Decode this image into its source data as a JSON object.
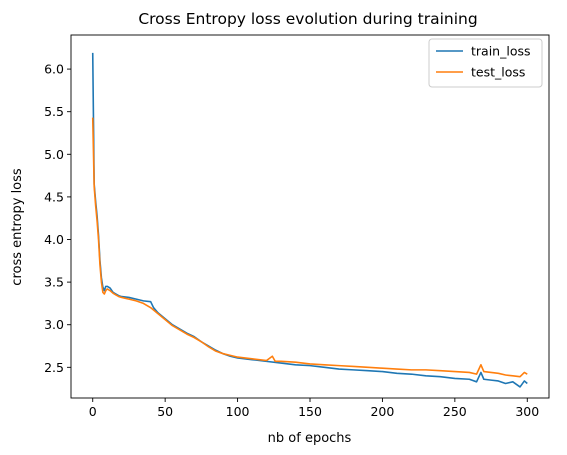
{
  "chart_data": {
    "type": "line",
    "title": "Cross Entropy loss evolution during training",
    "xlabel": "nb of epochs",
    "ylabel": "cross entropy loss",
    "xlim": [
      -15,
      315
    ],
    "ylim": [
      2.14,
      6.4
    ],
    "xticks": [
      0,
      50,
      100,
      150,
      200,
      250,
      300
    ],
    "yticks": [
      2.5,
      3.0,
      3.5,
      4.0,
      4.5,
      5.0,
      5.5,
      6.0
    ],
    "xtick_labels": [
      "0",
      "50",
      "100",
      "150",
      "200",
      "250",
      "300"
    ],
    "ytick_labels": [
      "2.5",
      "3.0",
      "3.5",
      "4.0",
      "4.5",
      "5.0",
      "5.5",
      "6.0"
    ],
    "grid": false,
    "legend_position": "top-right",
    "series": [
      {
        "name": "train_loss",
        "color": "#1f77b4",
        "x": [
          0,
          1,
          2,
          3,
          4,
          5,
          6,
          7,
          8,
          9,
          10,
          12,
          14,
          16,
          18,
          20,
          25,
          30,
          35,
          40,
          42,
          45,
          50,
          55,
          60,
          65,
          70,
          75,
          80,
          85,
          90,
          95,
          100,
          110,
          120,
          130,
          140,
          150,
          160,
          170,
          180,
          190,
          200,
          210,
          220,
          230,
          240,
          250,
          260,
          265,
          268,
          270,
          275,
          280,
          285,
          290,
          295,
          298,
          300
        ],
        "y": [
          6.19,
          4.65,
          4.45,
          4.28,
          4.05,
          3.75,
          3.55,
          3.44,
          3.4,
          3.45,
          3.45,
          3.43,
          3.38,
          3.36,
          3.34,
          3.33,
          3.32,
          3.3,
          3.28,
          3.27,
          3.2,
          3.14,
          3.07,
          3.0,
          2.95,
          2.9,
          2.86,
          2.8,
          2.75,
          2.7,
          2.66,
          2.63,
          2.61,
          2.59,
          2.57,
          2.55,
          2.53,
          2.52,
          2.5,
          2.48,
          2.47,
          2.46,
          2.45,
          2.43,
          2.42,
          2.4,
          2.39,
          2.37,
          2.36,
          2.33,
          2.44,
          2.36,
          2.35,
          2.34,
          2.31,
          2.33,
          2.27,
          2.34,
          2.31
        ]
      },
      {
        "name": "test_loss",
        "color": "#ff7f0e",
        "x": [
          0,
          1,
          2,
          3,
          4,
          5,
          6,
          7,
          8,
          9,
          10,
          12,
          14,
          16,
          18,
          20,
          25,
          30,
          35,
          40,
          45,
          50,
          55,
          60,
          65,
          70,
          75,
          80,
          85,
          90,
          95,
          100,
          110,
          120,
          124,
          126,
          130,
          140,
          150,
          160,
          170,
          180,
          190,
          200,
          210,
          220,
          230,
          240,
          250,
          260,
          265,
          268,
          270,
          275,
          280,
          285,
          290,
          295,
          298,
          300
        ],
        "y": [
          5.43,
          4.62,
          4.4,
          4.22,
          4.0,
          3.7,
          3.5,
          3.38,
          3.36,
          3.4,
          3.42,
          3.4,
          3.37,
          3.35,
          3.33,
          3.32,
          3.3,
          3.28,
          3.25,
          3.2,
          3.13,
          3.06,
          2.99,
          2.94,
          2.89,
          2.85,
          2.8,
          2.74,
          2.69,
          2.66,
          2.64,
          2.62,
          2.6,
          2.58,
          2.63,
          2.57,
          2.57,
          2.56,
          2.54,
          2.53,
          2.52,
          2.51,
          2.5,
          2.49,
          2.48,
          2.47,
          2.47,
          2.46,
          2.45,
          2.44,
          2.42,
          2.53,
          2.45,
          2.44,
          2.43,
          2.41,
          2.4,
          2.39,
          2.44,
          2.42
        ]
      }
    ]
  }
}
